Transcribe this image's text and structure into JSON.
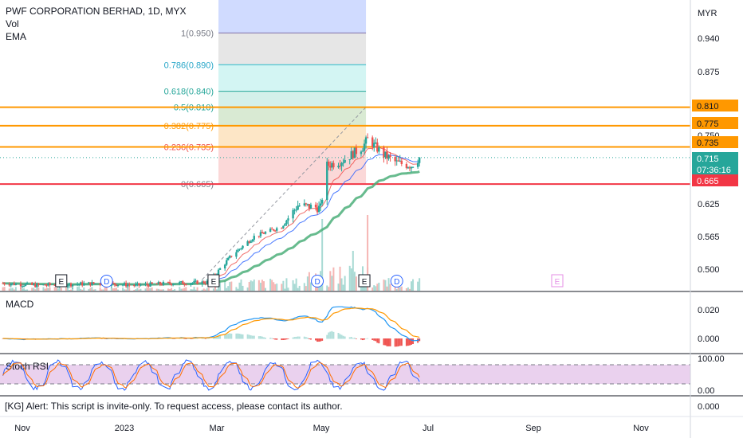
{
  "header": {
    "title": "PWF CORPORATION BERHAD, 1D, MYX",
    "indicator_vol": "Vol",
    "indicator_ema": "EMA"
  },
  "currency": "MYR",
  "alert_text": "[KG] Alert: This script is invite-only. To request access, please contact its author.",
  "colors": {
    "up": "#26a69a",
    "down": "#ef5350",
    "ema_fast": "#ef5350",
    "ema_mid": "#2962ff",
    "ema_slow": "#4caf7a",
    "orange_line": "#ff9800",
    "red_line": "#f23645",
    "macd": "#2196f3",
    "signal": "#ff9800",
    "stoch_k": "#2962ff",
    "stoch_d": "#ff6d00",
    "rsi_band": "#e1bee7"
  },
  "chart_data": {
    "type": "candlestick",
    "main_axis": {
      "ticks": [
        "0.940",
        "0.875",
        "0.625",
        "0.565",
        "0.500"
      ],
      "price_labels": [
        {
          "value": "0.810",
          "kind": "orange"
        },
        {
          "value": "0.775",
          "kind": "orange"
        },
        {
          "value": "0.735",
          "kind": "orange"
        },
        {
          "value": "0.715",
          "sub": "07:36:16",
          "kind": "current"
        },
        {
          "value": "0.665",
          "kind": "red"
        }
      ],
      "partial_tick": "0.750"
    },
    "fibonacci": [
      {
        "label": "1(0.950)",
        "price": 0.95
      },
      {
        "label": "0.786(0.890)",
        "price": 0.89
      },
      {
        "label": "0.618(0.840)",
        "price": 0.84
      },
      {
        "label": "0.5(0.810)",
        "price": 0.81
      },
      {
        "label": "0.382(0.775)",
        "price": 0.775
      },
      {
        "label": "0.236(0.735)",
        "price": 0.735
      },
      {
        "label": "0(0.665)",
        "price": 0.665
      }
    ],
    "horizontal_lines": [
      0.81,
      0.775,
      0.735,
      0.665
    ],
    "event_markers": [
      {
        "label": "E",
        "date": "2022-11-25"
      },
      {
        "label": "D",
        "date": "2022-12-23"
      },
      {
        "label": "E",
        "date": "2023-02-27"
      },
      {
        "label": "D",
        "date": "2023-05-02"
      },
      {
        "label": "E",
        "date": "2023-05-31"
      },
      {
        "label": "D",
        "date": "2023-06-20"
      },
      {
        "label": "E",
        "date": "2023-09-27"
      }
    ],
    "macd": {
      "label": "MACD",
      "ticks": [
        "0.020",
        "0.000"
      ]
    },
    "stoch_rsi": {
      "label": "Stoch RSI",
      "ticks": [
        "100.00",
        "0.00"
      ],
      "bands": [
        80,
        20
      ]
    },
    "bottom_pane_tick": "0.000",
    "x_axis": {
      "labels": [
        "Nov",
        "2023",
        "Mar",
        "May",
        "Jul",
        "Sep",
        "Nov"
      ]
    },
    "price_path": [
      [
        "2022-10-20",
        0.478
      ],
      [
        "2022-11-10",
        0.474
      ],
      [
        "2022-12-01",
        0.476
      ],
      [
        "2022-12-20",
        0.478
      ],
      [
        "2023-01-10",
        0.474
      ],
      [
        "2023-02-01",
        0.478
      ],
      [
        "2023-02-24",
        0.48
      ],
      [
        "2023-03-10",
        0.53
      ],
      [
        "2023-03-24",
        0.566
      ],
      [
        "2023-04-10",
        0.585
      ],
      [
        "2023-04-20",
        0.625
      ],
      [
        "2023-05-04",
        0.62
      ],
      [
        "2023-05-08",
        0.7
      ],
      [
        "2023-05-18",
        0.71
      ],
      [
        "2023-05-30",
        0.735
      ],
      [
        "2023-06-02",
        0.75
      ],
      [
        "2023-06-12",
        0.72
      ],
      [
        "2023-06-20",
        0.705
      ],
      [
        "2023-06-29",
        0.7
      ],
      [
        "2023-07-04",
        0.715
      ]
    ]
  }
}
